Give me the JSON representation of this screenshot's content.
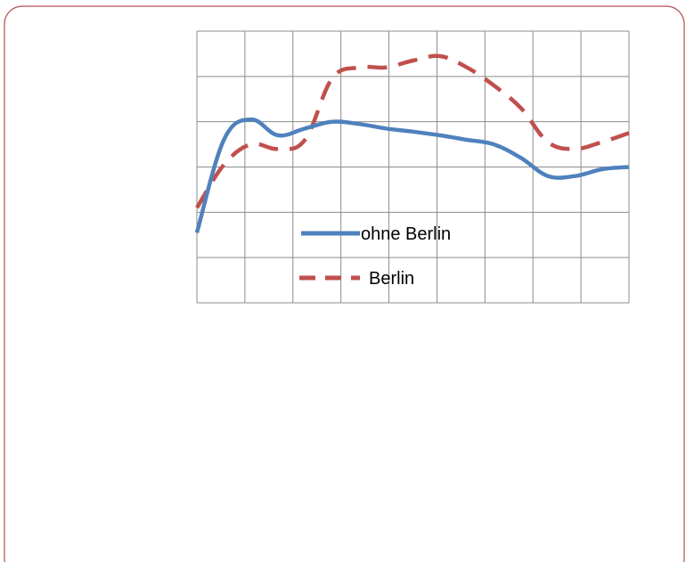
{
  "chart_data": {
    "type": "line",
    "title": "",
    "xlabel": "",
    "ylabel": "",
    "grid": true,
    "legend_placement": "center",
    "x": [
      0,
      0.5,
      1,
      1.5,
      2,
      2.5,
      3,
      3.5,
      4,
      4.5,
      5,
      5.5,
      6,
      6.5,
      7,
      7.5,
      8
    ],
    "xlim": [
      0,
      8
    ],
    "ylim": [
      0,
      6
    ],
    "series": [
      {
        "name": "ohne Berlin",
        "color": "#4F81BD",
        "dash": "solid",
        "values": [
          1.55,
          3.6,
          4.05,
          3.7,
          3.85,
          4.0,
          3.95,
          3.85,
          3.78,
          3.7,
          3.6,
          3.5,
          3.2,
          2.8,
          2.8,
          2.95,
          3.0
        ]
      },
      {
        "name": "Berlin",
        "color": "#C0504D",
        "dash": "dashed",
        "values": [
          2.1,
          3.05,
          3.5,
          3.4,
          3.6,
          4.95,
          5.2,
          5.2,
          5.35,
          5.45,
          5.2,
          4.8,
          4.3,
          3.55,
          3.4,
          3.55,
          3.75
        ]
      }
    ]
  }
}
